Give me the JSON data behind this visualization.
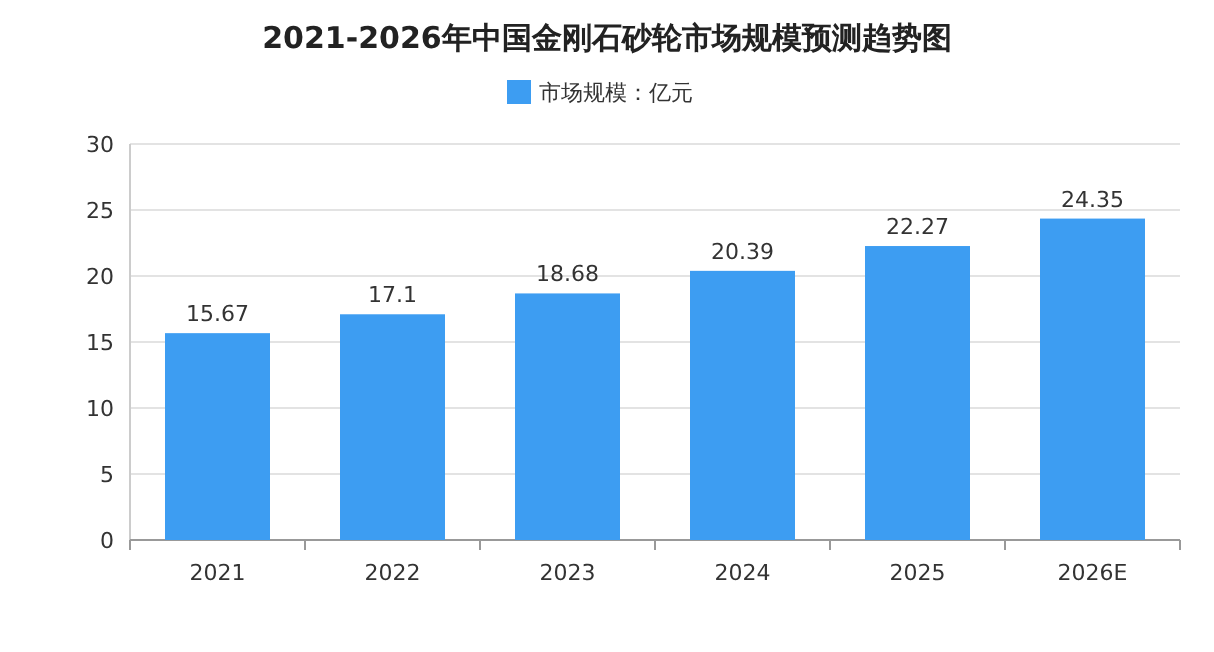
{
  "chart_data": {
    "type": "bar",
    "title": "2021-2026年中国金刚石砂轮市场规模预测趋势图",
    "categories": [
      "2021",
      "2022",
      "2023",
      "2024",
      "2025",
      "2026E"
    ],
    "series": [
      {
        "name": "市场规模：亿元",
        "color": "#3d9df2",
        "values": [
          15.67,
          17.1,
          18.68,
          20.39,
          22.27,
          24.35
        ]
      }
    ],
    "ylim": [
      0,
      30
    ],
    "yticks": [
      0,
      5,
      10,
      15,
      20,
      25,
      30
    ],
    "grid": "y",
    "legend": "top",
    "data_labels": true
  }
}
